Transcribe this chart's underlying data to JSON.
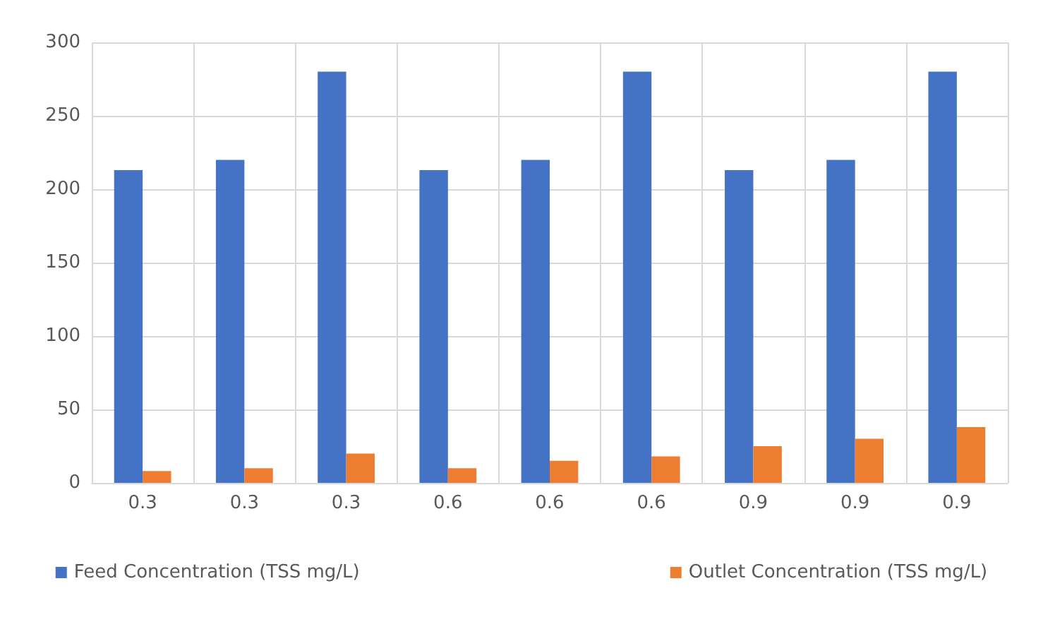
{
  "chart_data": {
    "type": "bar",
    "categories": [
      "0.3",
      "0.3",
      "0.3",
      "0.6",
      "0.6",
      "0.6",
      "0.9",
      "0.9",
      "0.9"
    ],
    "series": [
      {
        "name": "Feed Concentration (TSS mg/L)",
        "color": "#4472c4",
        "values": [
          213,
          220,
          280,
          213,
          220,
          280,
          213,
          220,
          280
        ]
      },
      {
        "name": "Outlet Concentration (TSS mg/L)",
        "color": "#ed7d31",
        "values": [
          8,
          10,
          20,
          10,
          15,
          18,
          25,
          30,
          38
        ]
      }
    ],
    "ylim": [
      0,
      300
    ],
    "yticks": [
      0,
      50,
      100,
      150,
      200,
      250,
      300
    ],
    "grid": true,
    "legend": "bottom"
  }
}
